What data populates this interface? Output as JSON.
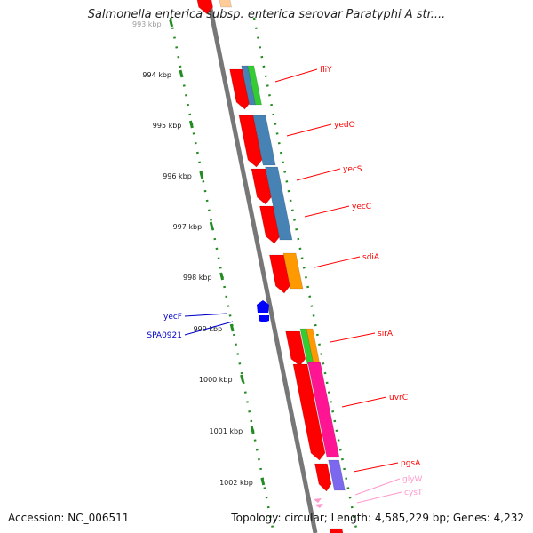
{
  "title": "Salmonella enterica subsp. enterica serovar Paratyphi A str....",
  "accession_text": "Accession: NC_006511",
  "stats_text": "Topology: circular; Length: 4,585,229 bp; Genes: 4,232",
  "colors": {
    "forward_cds": "#ff0000",
    "blast_blue": "#4682b4",
    "blast_green": "#33cc33",
    "blast_orange": "#ff9900",
    "blast_magenta": "#ff1493",
    "blast_purple": "#7b68ee",
    "reverse_cds": "#0000ff",
    "trna": "#ff99cc",
    "ruler": "#228b22",
    "backbone": "#777777"
  },
  "ruler": {
    "unit": "kbp",
    "tick_labels": [
      "993 kbp",
      "994 kbp",
      "995 kbp",
      "996 kbp",
      "997 kbp",
      "998 kbp",
      "999 kbp",
      "1000 kbp",
      "1001 kbp",
      "1002 kbp"
    ]
  },
  "gene_labels": {
    "right": [
      {
        "name": "fliY",
        "color": "#ff0000"
      },
      {
        "name": "yedO",
        "color": "#ff0000"
      },
      {
        "name": "yecS",
        "color": "#ff0000"
      },
      {
        "name": "yecC",
        "color": "#ff0000"
      },
      {
        "name": "sdiA",
        "color": "#ff0000"
      },
      {
        "name": "sirA",
        "color": "#ff0000"
      },
      {
        "name": "uvrC",
        "color": "#ff0000"
      },
      {
        "name": "pgsA",
        "color": "#ff0000"
      },
      {
        "name": "glyW",
        "color": "#ff99cc"
      },
      {
        "name": "cysT",
        "color": "#ff99cc"
      }
    ],
    "left": [
      {
        "name": "yecF",
        "color": "#0000cc"
      },
      {
        "name": "SPA0921",
        "color": "#0000cc"
      }
    ]
  }
}
